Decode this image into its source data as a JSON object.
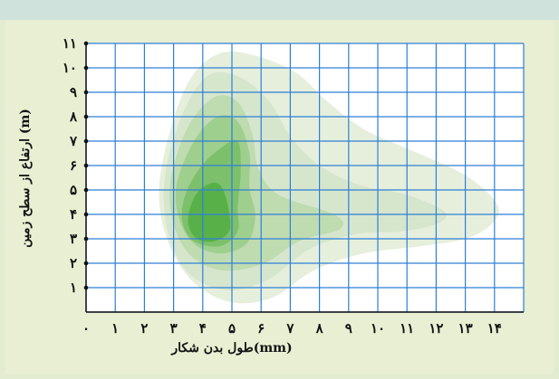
{
  "chart_data": {
    "type": "heatmap",
    "subtype": "density-contour",
    "xlabel": "طول بدن شکار(mm)",
    "ylabel": "ارتفاع از سطح زمین (m)",
    "xlim": [
      0,
      15
    ],
    "ylim": [
      0,
      11
    ],
    "x_ticks": [
      "۰",
      "۱",
      "۲",
      "۳",
      "۴",
      "۵",
      "۶",
      "۷",
      "۸",
      "۹",
      "۱۰",
      "۱۱",
      "۱۲",
      "۱۳",
      "۱۴"
    ],
    "y_ticks": [
      "۱",
      "۲",
      "۳",
      "۴",
      "۵",
      "۶",
      "۷",
      "۸",
      "۹",
      "۱۰",
      "۱۱"
    ],
    "grid": true,
    "grid_color": "#2d7fd6",
    "contours": [
      {
        "level": 1,
        "color": "#e6efdc",
        "points": [
          [
            2.5,
            5
          ],
          [
            2.9,
            7.5
          ],
          [
            3.6,
            9.6
          ],
          [
            4.6,
            10.6
          ],
          [
            5.8,
            10.5
          ],
          [
            7.2,
            9.8
          ],
          [
            8.2,
            8.7
          ],
          [
            9.5,
            7.5
          ],
          [
            11,
            6.7
          ],
          [
            13,
            5.6
          ],
          [
            14.1,
            4.4
          ],
          [
            13.9,
            3.6
          ],
          [
            13,
            3
          ],
          [
            11.5,
            2.7
          ],
          [
            9.5,
            2.4
          ],
          [
            7.8,
            1.7
          ],
          [
            6.4,
            0.6
          ],
          [
            5,
            0.4
          ],
          [
            3.7,
            1.2
          ],
          [
            2.8,
            2.9
          ]
        ]
      },
      {
        "level": 2,
        "color": "#d6e6cd",
        "points": [
          [
            2.7,
            5.5
          ],
          [
            3.3,
            8.1
          ],
          [
            4.2,
            9.7
          ],
          [
            5.3,
            9.6
          ],
          [
            6.3,
            8.6
          ],
          [
            7,
            7.2
          ],
          [
            8,
            6
          ],
          [
            9.4,
            5.2
          ],
          [
            11,
            4.8
          ],
          [
            12.3,
            4.1
          ],
          [
            12,
            3.6
          ],
          [
            10.8,
            3.3
          ],
          [
            9.3,
            3.2
          ],
          [
            7.7,
            2.6
          ],
          [
            6.2,
            1.3
          ],
          [
            4.8,
            0.9
          ],
          [
            3.5,
            1.6
          ],
          [
            2.8,
            3.3
          ]
        ]
      },
      {
        "level": 3,
        "color": "#bfdbb0",
        "points": [
          [
            2.9,
            5.4
          ],
          [
            3.5,
            7.6
          ],
          [
            4.4,
            8.8
          ],
          [
            5.2,
            8.6
          ],
          [
            5.7,
            7.3
          ],
          [
            5.9,
            5.9
          ],
          [
            6.6,
            4.8
          ],
          [
            8.5,
            4
          ],
          [
            8.7,
            3.4
          ],
          [
            7.3,
            2.9
          ],
          [
            6.1,
            2
          ],
          [
            4.7,
            1.7
          ],
          [
            3.6,
            2.3
          ],
          [
            3,
            3.6
          ]
        ]
      },
      {
        "level": 4,
        "color": "#9fcf8e",
        "points": [
          [
            3.1,
            5.2
          ],
          [
            3.7,
            7
          ],
          [
            4.5,
            8
          ],
          [
            5.2,
            7.8
          ],
          [
            5.6,
            6.5
          ],
          [
            5.6,
            5.1
          ],
          [
            5.8,
            3.9
          ],
          [
            5.5,
            2.8
          ],
          [
            4.6,
            2.4
          ],
          [
            3.7,
            2.8
          ],
          [
            3.2,
            3.8
          ]
        ]
      },
      {
        "level": 5,
        "color": "#7dc06b",
        "points": [
          [
            3.4,
            4.8
          ],
          [
            3.9,
            5.9
          ],
          [
            4.6,
            6.7
          ],
          [
            5.2,
            7
          ],
          [
            5.3,
            5.8
          ],
          [
            5.2,
            4.3
          ],
          [
            5.2,
            3.3
          ],
          [
            4.6,
            2.7
          ],
          [
            3.7,
            2.9
          ],
          [
            3.3,
            3.7
          ]
        ]
      },
      {
        "level": 6,
        "color": "#58b148",
        "points": [
          [
            3.6,
            4.4
          ],
          [
            3.9,
            5
          ],
          [
            4.4,
            5.3
          ],
          [
            4.7,
            5
          ],
          [
            4.9,
            4.1
          ],
          [
            4.9,
            3.3
          ],
          [
            4.4,
            2.9
          ],
          [
            3.8,
            3
          ],
          [
            3.5,
            3.6
          ]
        ]
      }
    ]
  }
}
